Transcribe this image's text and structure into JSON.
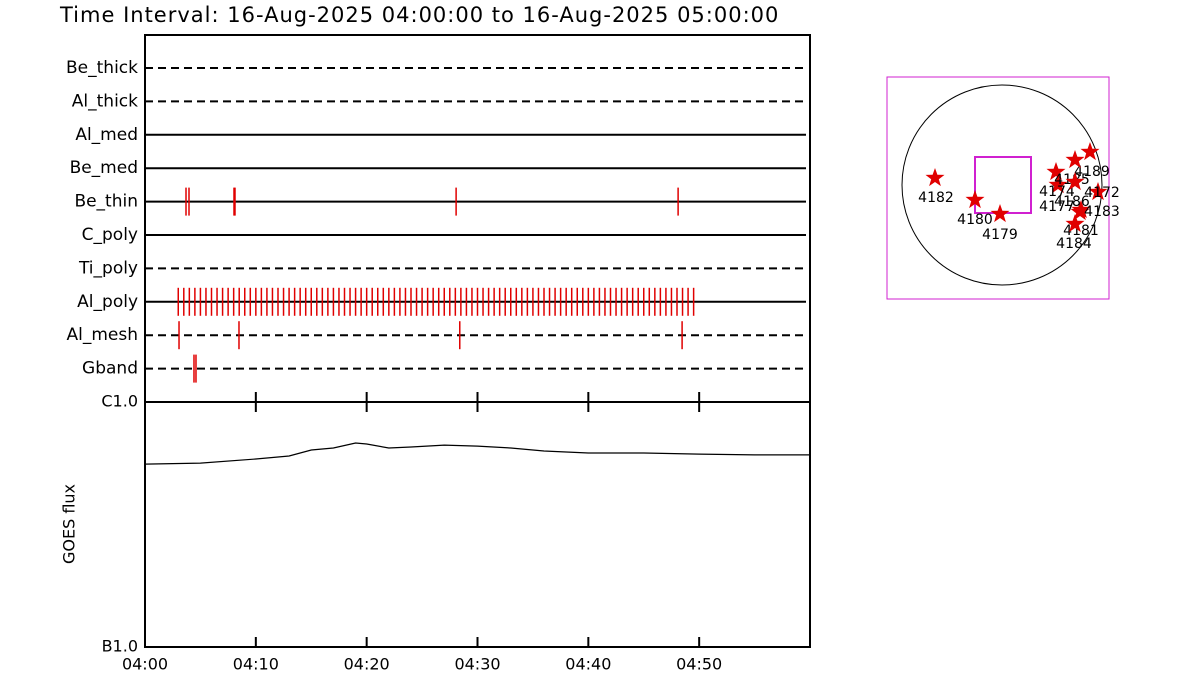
{
  "title": "Time Interval: 16-Aug-2025 04:00:00 to 16-Aug-2025 05:00:00",
  "chart_data": [
    {
      "type": "event",
      "xlim": [
        0,
        60
      ],
      "color": "#e00000",
      "rows": [
        {
          "name": "Be_thick",
          "style": "dashed",
          "x": []
        },
        {
          "name": "Al_thick",
          "style": "dashed",
          "x": []
        },
        {
          "name": "Al_med",
          "style": "solid",
          "x": []
        },
        {
          "name": "Be_med",
          "style": "solid",
          "x": []
        },
        {
          "name": "Be_thin",
          "style": "solid",
          "x": [
            3.7,
            3.97,
            8.03,
            8.12,
            28.07,
            48.1
          ]
        },
        {
          "name": "C_poly",
          "style": "solid",
          "x": []
        },
        {
          "name": "Ti_poly",
          "style": "dashed",
          "x": []
        },
        {
          "name": "Al_poly",
          "style": "solid",
          "x": [
            3.0,
            3.5,
            4.0,
            4.5,
            5.0,
            5.5,
            6.0,
            6.5,
            7.0,
            7.5,
            8.0,
            8.5,
            9.0,
            9.5,
            10.0,
            10.5,
            11.0,
            11.5,
            12.0,
            12.5,
            13.0,
            13.5,
            14.0,
            14.5,
            15.0,
            15.5,
            16.0,
            16.5,
            17.0,
            17.5,
            18.0,
            18.5,
            19.0,
            19.5,
            20.0,
            20.5,
            21.0,
            21.5,
            22.0,
            22.5,
            23.0,
            23.5,
            24.0,
            24.5,
            25.0,
            25.5,
            26.0,
            26.5,
            27.0,
            27.5,
            28.0,
            28.5,
            29.0,
            29.5,
            30.0,
            30.5,
            31.0,
            31.5,
            32.0,
            32.5,
            33.0,
            33.5,
            34.0,
            34.5,
            35.0,
            35.5,
            36.0,
            36.5,
            37.0,
            37.5,
            38.0,
            38.5,
            39.0,
            39.5,
            40.0,
            40.5,
            41.0,
            41.5,
            42.0,
            42.5,
            43.0,
            43.5,
            44.0,
            44.5,
            45.0,
            45.5,
            46.0,
            46.5,
            47.0,
            47.5,
            48.0,
            48.5,
            49.0,
            49.5
          ]
        },
        {
          "name": "Al_mesh",
          "style": "dashed",
          "x": [
            3.07,
            8.48,
            28.4,
            48.46
          ]
        },
        {
          "name": "Gband",
          "style": "dashed",
          "x": [
            4.42,
            4.6
          ]
        }
      ]
    },
    {
      "type": "line",
      "ylabel": "GOES flux",
      "log": true,
      "color": "#000000",
      "x": [
        0,
        5,
        10,
        13,
        15,
        17,
        19,
        20,
        22,
        24,
        27,
        30,
        33,
        36,
        40,
        45,
        50,
        55,
        60
      ],
      "values": [
        5.58e-07,
        5.63e-07,
        5.85e-07,
        6.02e-07,
        6.37e-07,
        6.49e-07,
        6.8e-07,
        6.74e-07,
        6.49e-07,
        6.55e-07,
        6.67e-07,
        6.61e-07,
        6.49e-07,
        6.31e-07,
        6.19e-07,
        6.19e-07,
        6.13e-07,
        6.08e-07,
        6.08e-07
      ],
      "xlim": [
        0,
        60
      ],
      "xticks": [
        {
          "value": 0,
          "label": "04:00"
        },
        {
          "value": 10,
          "label": "04:10"
        },
        {
          "value": 20,
          "label": "04:20"
        },
        {
          "value": 30,
          "label": "04:30"
        },
        {
          "value": 40,
          "label": "04:40"
        },
        {
          "value": 50,
          "label": "04:50"
        }
      ],
      "ylim": [
        1e-07,
        1e-06
      ],
      "yticks": [
        {
          "value": 1e-07,
          "label": "B1.0"
        },
        {
          "value": 1e-06,
          "label": "C1.0"
        }
      ]
    }
  ],
  "map": {
    "regions": [
      "4182",
      "4180",
      "4179",
      "4181",
      "4184",
      "4183",
      "4172",
      "4177",
      "4174",
      "4189",
      "4185",
      "4186"
    ]
  }
}
